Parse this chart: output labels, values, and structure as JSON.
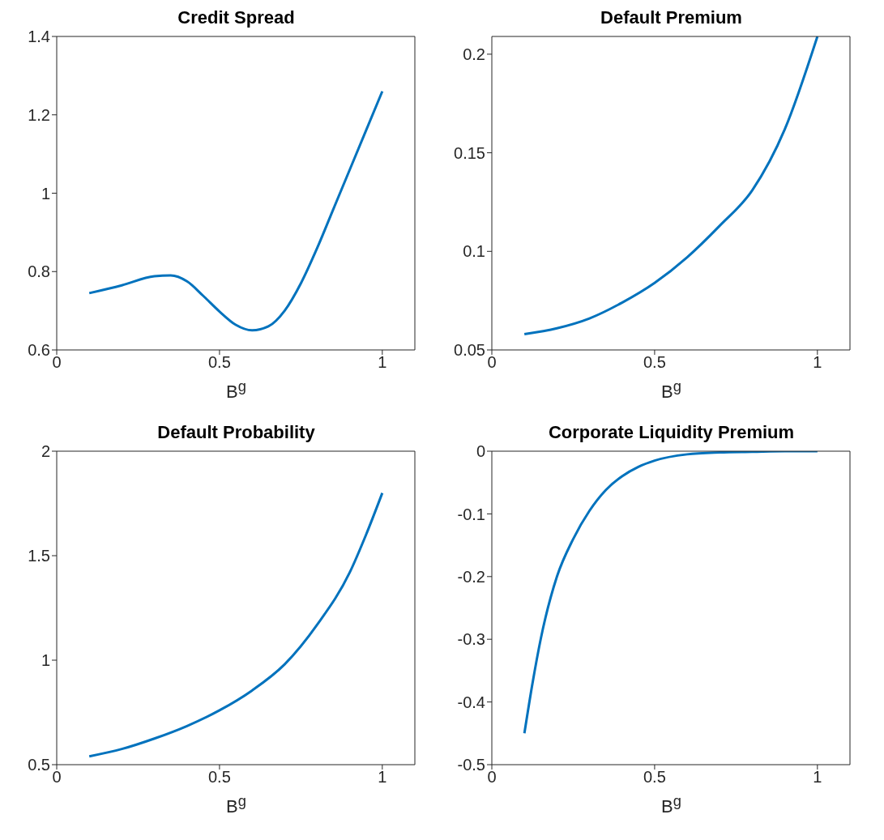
{
  "chart_data": [
    {
      "type": "line",
      "title": "Credit Spread",
      "xlabel": "B$^{g}$",
      "xlim": [
        0,
        1.1
      ],
      "xticks": [
        0,
        0.5,
        1
      ],
      "ylim": [
        0.6,
        1.4
      ],
      "yticks": [
        0.6,
        0.8,
        1,
        1.2,
        1.4
      ],
      "x": [
        0.1,
        0.2,
        0.3,
        0.35,
        0.4,
        0.45,
        0.5,
        0.55,
        0.6,
        0.65,
        0.7,
        0.75,
        0.8,
        0.85,
        0.9,
        0.95,
        1.0
      ],
      "series": [
        {
          "color": "#0072bd",
          "values": [
            0.745,
            0.765,
            0.788,
            0.79,
            0.775,
            0.738,
            0.698,
            0.664,
            0.65,
            0.66,
            0.7,
            0.77,
            0.86,
            0.96,
            1.06,
            1.16,
            1.26
          ]
        }
      ]
    },
    {
      "type": "line",
      "title": "Default Premium",
      "xlabel": "B$^{g}$",
      "xlim": [
        0,
        1.1
      ],
      "xticks": [
        0,
        0.5,
        1
      ],
      "ylim": [
        0.05,
        0.209
      ],
      "yticks": [
        0.05,
        0.1,
        0.15,
        0.2
      ],
      "x": [
        0.1,
        0.2,
        0.3,
        0.4,
        0.5,
        0.6,
        0.7,
        0.8,
        0.9,
        1.0
      ],
      "series": [
        {
          "color": "#0072bd",
          "values": [
            0.058,
            0.061,
            0.066,
            0.074,
            0.084,
            0.097,
            0.113,
            0.131,
            0.162,
            0.209
          ]
        }
      ]
    },
    {
      "type": "line",
      "title": "Default Probability",
      "xlabel": "B$^{g}$",
      "xlim": [
        0,
        1.1
      ],
      "xticks": [
        0,
        0.5,
        1
      ],
      "ylim": [
        0.5,
        2
      ],
      "yticks": [
        0.5,
        1,
        1.5,
        2
      ],
      "x": [
        0.1,
        0.2,
        0.3,
        0.4,
        0.5,
        0.6,
        0.7,
        0.8,
        0.9,
        0.95,
        1.0
      ],
      "series": [
        {
          "color": "#0072bd",
          "values": [
            0.54,
            0.575,
            0.625,
            0.685,
            0.76,
            0.855,
            0.98,
            1.17,
            1.42,
            1.6,
            1.8
          ]
        }
      ]
    },
    {
      "type": "line",
      "title": "Corporate Liquidity Premium",
      "xlabel": "B$^{g}$",
      "xlim": [
        0,
        1.1
      ],
      "xticks": [
        0,
        0.5,
        1
      ],
      "ylim": [
        -0.5,
        0
      ],
      "yticks": [
        -0.5,
        -0.4,
        -0.3,
        -0.2,
        -0.1,
        0
      ],
      "x": [
        0.1,
        0.125,
        0.15,
        0.2,
        0.25,
        0.3,
        0.35,
        0.4,
        0.45,
        0.5,
        0.6,
        0.7,
        0.8,
        0.9,
        1.0
      ],
      "series": [
        {
          "color": "#0072bd",
          "values": [
            -0.45,
            -0.37,
            -0.3,
            -0.2,
            -0.14,
            -0.095,
            -0.062,
            -0.04,
            -0.025,
            -0.015,
            -0.005,
            -0.002,
            -0.001,
            0,
            0
          ]
        }
      ]
    }
  ]
}
